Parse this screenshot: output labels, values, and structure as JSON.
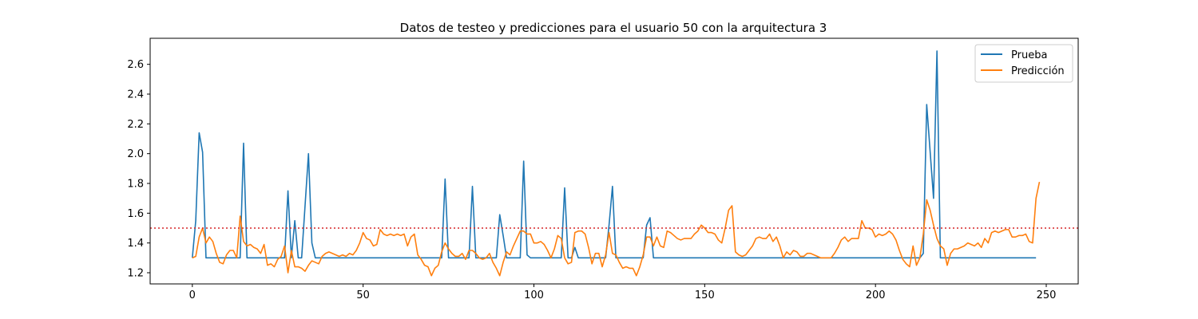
{
  "chart_data": {
    "type": "line",
    "title": "Datos de testeo y predicciones para el usuario 50 con la arquitectura 3",
    "xlabel": "",
    "ylabel": "",
    "xlim": [
      -12.35,
      259.35
    ],
    "ylim": [
      1.125,
      2.775
    ],
    "xticks": [
      0,
      50,
      100,
      150,
      200,
      250
    ],
    "yticks": [
      1.2,
      1.4,
      1.6,
      1.8,
      2.0,
      2.2,
      2.4,
      2.6
    ],
    "grid": false,
    "legend_position": "top-right",
    "threshold": {
      "value": 1.5,
      "color": "#d62728",
      "style": "dotted"
    },
    "series": [
      {
        "name": "Prueba",
        "color": "#1f77b4",
        "points": [
          [
            0,
            1.3
          ],
          [
            1,
            1.55
          ],
          [
            2,
            2.14
          ],
          [
            3,
            2.01
          ],
          [
            4,
            1.3
          ],
          [
            14,
            1.3
          ],
          [
            15,
            2.07
          ],
          [
            16,
            1.3
          ],
          [
            27,
            1.3
          ],
          [
            28,
            1.75
          ],
          [
            29,
            1.3
          ],
          [
            30,
            1.55
          ],
          [
            31,
            1.3
          ],
          [
            32,
            1.3
          ],
          [
            34,
            2.0
          ],
          [
            35,
            1.4
          ],
          [
            36,
            1.3
          ],
          [
            73,
            1.3
          ],
          [
            74,
            1.83
          ],
          [
            75,
            1.3
          ],
          [
            81,
            1.3
          ],
          [
            82,
            1.78
          ],
          [
            83,
            1.3
          ],
          [
            89,
            1.3
          ],
          [
            90,
            1.59
          ],
          [
            91,
            1.45
          ],
          [
            92,
            1.3
          ],
          [
            96,
            1.3
          ],
          [
            97,
            1.95
          ],
          [
            98,
            1.32
          ],
          [
            99,
            1.3
          ],
          [
            108,
            1.3
          ],
          [
            109,
            1.77
          ],
          [
            110,
            1.3
          ],
          [
            111,
            1.3
          ],
          [
            112,
            1.37
          ],
          [
            113,
            1.3
          ],
          [
            121,
            1.3
          ],
          [
            122,
            1.52
          ],
          [
            123,
            1.78
          ],
          [
            124,
            1.3
          ],
          [
            132,
            1.3
          ],
          [
            133,
            1.52
          ],
          [
            134,
            1.57
          ],
          [
            135,
            1.3
          ],
          [
            213,
            1.3
          ],
          [
            214,
            1.33
          ],
          [
            215,
            2.33
          ],
          [
            217,
            1.7
          ],
          [
            218,
            2.69
          ],
          [
            219,
            1.3
          ],
          [
            247,
            1.3
          ]
        ]
      },
      {
        "name": "Predicción",
        "color": "#ff7f0e",
        "points": [
          [
            0,
            1.3
          ],
          [
            1,
            1.31
          ],
          [
            2,
            1.44
          ],
          [
            3,
            1.5
          ],
          [
            4,
            1.4
          ],
          [
            5,
            1.44
          ],
          [
            6,
            1.41
          ],
          [
            7,
            1.33
          ],
          [
            8,
            1.27
          ],
          [
            9,
            1.26
          ],
          [
            10,
            1.32
          ],
          [
            11,
            1.35
          ],
          [
            12,
            1.35
          ],
          [
            13,
            1.3
          ],
          [
            14,
            1.58
          ],
          [
            15,
            1.41
          ],
          [
            16,
            1.38
          ],
          [
            17,
            1.39
          ],
          [
            18,
            1.37
          ],
          [
            19,
            1.36
          ],
          [
            20,
            1.33
          ],
          [
            21,
            1.39
          ],
          [
            22,
            1.25
          ],
          [
            23,
            1.26
          ],
          [
            24,
            1.24
          ],
          [
            25,
            1.29
          ],
          [
            26,
            1.31
          ],
          [
            27,
            1.38
          ],
          [
            28,
            1.2
          ],
          [
            29,
            1.35
          ],
          [
            30,
            1.24
          ],
          [
            31,
            1.24
          ],
          [
            32,
            1.23
          ],
          [
            33,
            1.21
          ],
          [
            34,
            1.25
          ],
          [
            35,
            1.28
          ],
          [
            36,
            1.27
          ],
          [
            37,
            1.26
          ],
          [
            38,
            1.31
          ],
          [
            39,
            1.33
          ],
          [
            40,
            1.34
          ],
          [
            41,
            1.33
          ],
          [
            42,
            1.32
          ],
          [
            43,
            1.31
          ],
          [
            44,
            1.32
          ],
          [
            45,
            1.31
          ],
          [
            46,
            1.33
          ],
          [
            47,
            1.32
          ],
          [
            48,
            1.35
          ],
          [
            49,
            1.4
          ],
          [
            50,
            1.47
          ],
          [
            51,
            1.43
          ],
          [
            52,
            1.42
          ],
          [
            53,
            1.38
          ],
          [
            54,
            1.39
          ],
          [
            55,
            1.49
          ],
          [
            56,
            1.46
          ],
          [
            57,
            1.45
          ],
          [
            58,
            1.46
          ],
          [
            59,
            1.45
          ],
          [
            60,
            1.46
          ],
          [
            61,
            1.45
          ],
          [
            62,
            1.46
          ],
          [
            63,
            1.38
          ],
          [
            64,
            1.44
          ],
          [
            65,
            1.46
          ],
          [
            66,
            1.32
          ],
          [
            67,
            1.29
          ],
          [
            68,
            1.25
          ],
          [
            69,
            1.24
          ],
          [
            70,
            1.18
          ],
          [
            71,
            1.23
          ],
          [
            72,
            1.25
          ],
          [
            73,
            1.34
          ],
          [
            74,
            1.4
          ],
          [
            75,
            1.36
          ],
          [
            76,
            1.33
          ],
          [
            77,
            1.31
          ],
          [
            78,
            1.31
          ],
          [
            79,
            1.33
          ],
          [
            80,
            1.29
          ],
          [
            81,
            1.35
          ],
          [
            82,
            1.35
          ],
          [
            83,
            1.33
          ],
          [
            84,
            1.3
          ],
          [
            85,
            1.29
          ],
          [
            86,
            1.3
          ],
          [
            87,
            1.33
          ],
          [
            88,
            1.27
          ],
          [
            89,
            1.23
          ],
          [
            90,
            1.18
          ],
          [
            91,
            1.27
          ],
          [
            92,
            1.34
          ],
          [
            93,
            1.32
          ],
          [
            94,
            1.38
          ],
          [
            95,
            1.43
          ],
          [
            96,
            1.48
          ],
          [
            97,
            1.48
          ],
          [
            98,
            1.46
          ],
          [
            99,
            1.46
          ],
          [
            100,
            1.4
          ],
          [
            101,
            1.4
          ],
          [
            102,
            1.41
          ],
          [
            103,
            1.39
          ],
          [
            104,
            1.35
          ],
          [
            105,
            1.3
          ],
          [
            106,
            1.36
          ],
          [
            107,
            1.45
          ],
          [
            108,
            1.43
          ],
          [
            109,
            1.3
          ],
          [
            110,
            1.26
          ],
          [
            111,
            1.27
          ],
          [
            112,
            1.47
          ],
          [
            113,
            1.48
          ],
          [
            114,
            1.48
          ],
          [
            115,
            1.46
          ],
          [
            116,
            1.37
          ],
          [
            117,
            1.26
          ],
          [
            118,
            1.33
          ],
          [
            119,
            1.33
          ],
          [
            120,
            1.24
          ],
          [
            121,
            1.32
          ],
          [
            122,
            1.47
          ],
          [
            123,
            1.33
          ],
          [
            124,
            1.32
          ],
          [
            125,
            1.27
          ],
          [
            126,
            1.23
          ],
          [
            127,
            1.24
          ],
          [
            128,
            1.23
          ],
          [
            129,
            1.23
          ],
          [
            130,
            1.18
          ],
          [
            131,
            1.24
          ],
          [
            132,
            1.32
          ],
          [
            133,
            1.44
          ],
          [
            134,
            1.44
          ],
          [
            135,
            1.38
          ],
          [
            136,
            1.44
          ],
          [
            137,
            1.38
          ],
          [
            138,
            1.37
          ],
          [
            139,
            1.48
          ],
          [
            140,
            1.47
          ],
          [
            141,
            1.45
          ],
          [
            142,
            1.43
          ],
          [
            143,
            1.42
          ],
          [
            144,
            1.43
          ],
          [
            145,
            1.43
          ],
          [
            146,
            1.43
          ],
          [
            147,
            1.46
          ],
          [
            148,
            1.48
          ],
          [
            149,
            1.52
          ],
          [
            150,
            1.5
          ],
          [
            151,
            1.47
          ],
          [
            152,
            1.47
          ],
          [
            153,
            1.46
          ],
          [
            154,
            1.42
          ],
          [
            155,
            1.4
          ],
          [
            156,
            1.5
          ],
          [
            157,
            1.62
          ],
          [
            158,
            1.65
          ],
          [
            159,
            1.34
          ],
          [
            160,
            1.32
          ],
          [
            161,
            1.31
          ],
          [
            162,
            1.32
          ],
          [
            163,
            1.35
          ],
          [
            164,
            1.38
          ],
          [
            165,
            1.43
          ],
          [
            166,
            1.44
          ],
          [
            167,
            1.43
          ],
          [
            168,
            1.43
          ],
          [
            169,
            1.46
          ],
          [
            170,
            1.41
          ],
          [
            171,
            1.44
          ],
          [
            172,
            1.38
          ],
          [
            173,
            1.3
          ],
          [
            174,
            1.34
          ],
          [
            175,
            1.32
          ],
          [
            176,
            1.35
          ],
          [
            177,
            1.34
          ],
          [
            178,
            1.31
          ],
          [
            179,
            1.31
          ],
          [
            180,
            1.33
          ],
          [
            181,
            1.33
          ],
          [
            182,
            1.32
          ],
          [
            183,
            1.31
          ],
          [
            184,
            1.3
          ],
          [
            185,
            1.3
          ],
          [
            186,
            1.3
          ],
          [
            187,
            1.3
          ],
          [
            188,
            1.33
          ],
          [
            189,
            1.37
          ],
          [
            190,
            1.42
          ],
          [
            191,
            1.44
          ],
          [
            192,
            1.41
          ],
          [
            193,
            1.43
          ],
          [
            194,
            1.43
          ],
          [
            195,
            1.43
          ],
          [
            196,
            1.55
          ],
          [
            197,
            1.5
          ],
          [
            198,
            1.5
          ],
          [
            199,
            1.49
          ],
          [
            200,
            1.44
          ],
          [
            201,
            1.46
          ],
          [
            202,
            1.45
          ],
          [
            203,
            1.46
          ],
          [
            204,
            1.48
          ],
          [
            205,
            1.46
          ],
          [
            206,
            1.42
          ],
          [
            207,
            1.35
          ],
          [
            208,
            1.29
          ],
          [
            209,
            1.26
          ],
          [
            210,
            1.24
          ],
          [
            211,
            1.38
          ],
          [
            212,
            1.25
          ],
          [
            213,
            1.3
          ],
          [
            214,
            1.46
          ],
          [
            215,
            1.69
          ],
          [
            216,
            1.62
          ],
          [
            217,
            1.52
          ],
          [
            218,
            1.43
          ],
          [
            219,
            1.38
          ],
          [
            220,
            1.36
          ],
          [
            221,
            1.25
          ],
          [
            222,
            1.33
          ],
          [
            223,
            1.36
          ],
          [
            224,
            1.36
          ],
          [
            225,
            1.37
          ],
          [
            226,
            1.38
          ],
          [
            227,
            1.4
          ],
          [
            228,
            1.39
          ],
          [
            229,
            1.38
          ],
          [
            230,
            1.4
          ],
          [
            231,
            1.37
          ],
          [
            232,
            1.43
          ],
          [
            233,
            1.4
          ],
          [
            234,
            1.47
          ],
          [
            235,
            1.48
          ],
          [
            236,
            1.47
          ],
          [
            237,
            1.48
          ],
          [
            238,
            1.49
          ],
          [
            239,
            1.49
          ],
          [
            240,
            1.44
          ],
          [
            241,
            1.44
          ],
          [
            242,
            1.45
          ],
          [
            243,
            1.45
          ],
          [
            244,
            1.46
          ],
          [
            245,
            1.41
          ],
          [
            246,
            1.4
          ],
          [
            247,
            1.7
          ],
          [
            248,
            1.81
          ]
        ]
      }
    ]
  }
}
